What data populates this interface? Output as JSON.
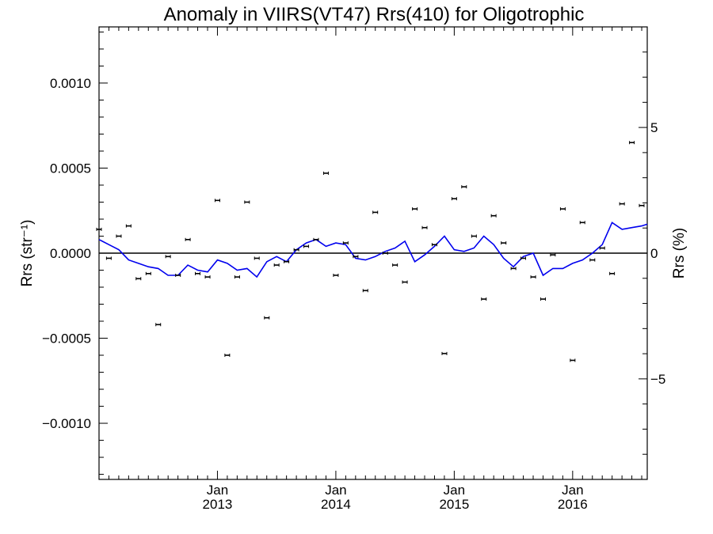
{
  "chart_data": {
    "type": "scatter",
    "title": "Anomaly in VIIRS(VT47) Rrs(410) for Oligotrophic",
    "ylabel_left": "Rrs (str⁻¹)",
    "ylabel_right": "Rrs (%)",
    "xlim": [
      2012.0,
      2016.63
    ],
    "ylim_left": [
      -0.00133,
      0.00133
    ],
    "ylim_right": [
      -9.0,
      9.0
    ],
    "left_ticks": [
      "0.0010",
      "0.0005",
      "0.0000",
      "−0.0005",
      "−0.0010"
    ],
    "left_tick_values": [
      0.001,
      0.0005,
      0.0,
      -0.0005,
      -0.001
    ],
    "right_ticks": [
      "5",
      "0",
      "−5"
    ],
    "right_tick_values": [
      5,
      0,
      -5
    ],
    "x_ticks": [
      {
        "month": "Jan",
        "year": "2013",
        "value": 2013.0
      },
      {
        "month": "Jan",
        "year": "2014",
        "value": 2014.0
      },
      {
        "month": "Jan",
        "year": "2015",
        "value": 2015.0
      },
      {
        "month": "Jan",
        "year": "2016",
        "value": 2016.0
      }
    ],
    "zero_line": 0.0,
    "series": [
      {
        "kind": "points_with_errorbars",
        "color": "#000000",
        "x": [
          2012.0,
          2012.083,
          2012.167,
          2012.25,
          2012.333,
          2012.417,
          2012.5,
          2012.583,
          2012.667,
          2012.75,
          2012.833,
          2012.917,
          2013.0,
          2013.083,
          2013.167,
          2013.25,
          2013.333,
          2013.417,
          2013.5,
          2013.583,
          2013.667,
          2013.75,
          2013.833,
          2013.917,
          2014.0,
          2014.083,
          2014.167,
          2014.25,
          2014.333,
          2014.417,
          2014.5,
          2014.583,
          2014.667,
          2014.75,
          2014.833,
          2014.917,
          2015.0,
          2015.083,
          2015.167,
          2015.25,
          2015.333,
          2015.417,
          2015.5,
          2015.583,
          2015.667,
          2015.75,
          2015.833,
          2015.917,
          2016.0,
          2016.083,
          2016.167,
          2016.25,
          2016.333,
          2016.417,
          2016.5,
          2016.583
        ],
        "y": [
          0.00014,
          -3e-05,
          0.0001,
          0.00016,
          -0.00015,
          -0.00012,
          -0.00042,
          -2e-05,
          -0.00013,
          8e-05,
          -0.00012,
          -0.00014,
          0.00031,
          -0.0006,
          -0.00014,
          0.0003,
          -3e-05,
          -0.00038,
          -7e-05,
          -5e-05,
          2e-05,
          4e-05,
          8e-05,
          0.00047,
          -0.00013,
          6e-05,
          -2e-05,
          -0.00022,
          0.00024,
          0.0,
          -7e-05,
          -0.00017,
          0.00026,
          0.00015,
          5e-05,
          -0.00059,
          0.00032,
          0.00039,
          0.0001,
          -0.00027,
          0.00022,
          6e-05,
          -9e-05,
          -3e-05,
          -0.00014,
          -0.00027,
          -1e-05,
          0.00026,
          -0.00063,
          0.00018,
          -4e-05,
          3e-05,
          -0.00012,
          0.00029,
          0.00065,
          0.00028
        ]
      },
      {
        "kind": "line",
        "color": "#0000ee",
        "x": [
          2012.0,
          2012.083,
          2012.167,
          2012.25,
          2012.333,
          2012.417,
          2012.5,
          2012.583,
          2012.667,
          2012.75,
          2012.833,
          2012.917,
          2013.0,
          2013.083,
          2013.167,
          2013.25,
          2013.333,
          2013.417,
          2013.5,
          2013.583,
          2013.667,
          2013.75,
          2013.833,
          2013.917,
          2014.0,
          2014.083,
          2014.167,
          2014.25,
          2014.333,
          2014.417,
          2014.5,
          2014.583,
          2014.667,
          2014.75,
          2014.833,
          2014.917,
          2015.0,
          2015.083,
          2015.167,
          2015.25,
          2015.333,
          2015.417,
          2015.5,
          2015.583,
          2015.667,
          2015.75,
          2015.833,
          2015.917,
          2016.0,
          2016.083,
          2016.167,
          2016.25,
          2016.333,
          2016.417,
          2016.5,
          2016.583,
          2016.63
        ],
        "y": [
          8e-05,
          5e-05,
          2e-05,
          -4e-05,
          -6e-05,
          -8e-05,
          -9e-05,
          -0.00013,
          -0.00013,
          -7e-05,
          -0.0001,
          -0.00011,
          -4e-05,
          -6e-05,
          -0.0001,
          -9e-05,
          -0.00014,
          -5e-05,
          -2e-05,
          -5e-05,
          2e-05,
          6e-05,
          8e-05,
          4e-05,
          6e-05,
          5e-05,
          -3e-05,
          -4e-05,
          -2e-05,
          1e-05,
          3e-05,
          7e-05,
          -5e-05,
          -1e-05,
          4e-05,
          0.0001,
          2e-05,
          1e-05,
          3e-05,
          0.0001,
          5e-05,
          -3e-05,
          -8e-05,
          -2e-05,
          0.0,
          -0.00013,
          -9e-05,
          -9e-05,
          -6e-05,
          -4e-05,
          0.0,
          5e-05,
          0.00018,
          0.00014,
          0.00015,
          0.00016,
          0.00017
        ]
      }
    ]
  }
}
